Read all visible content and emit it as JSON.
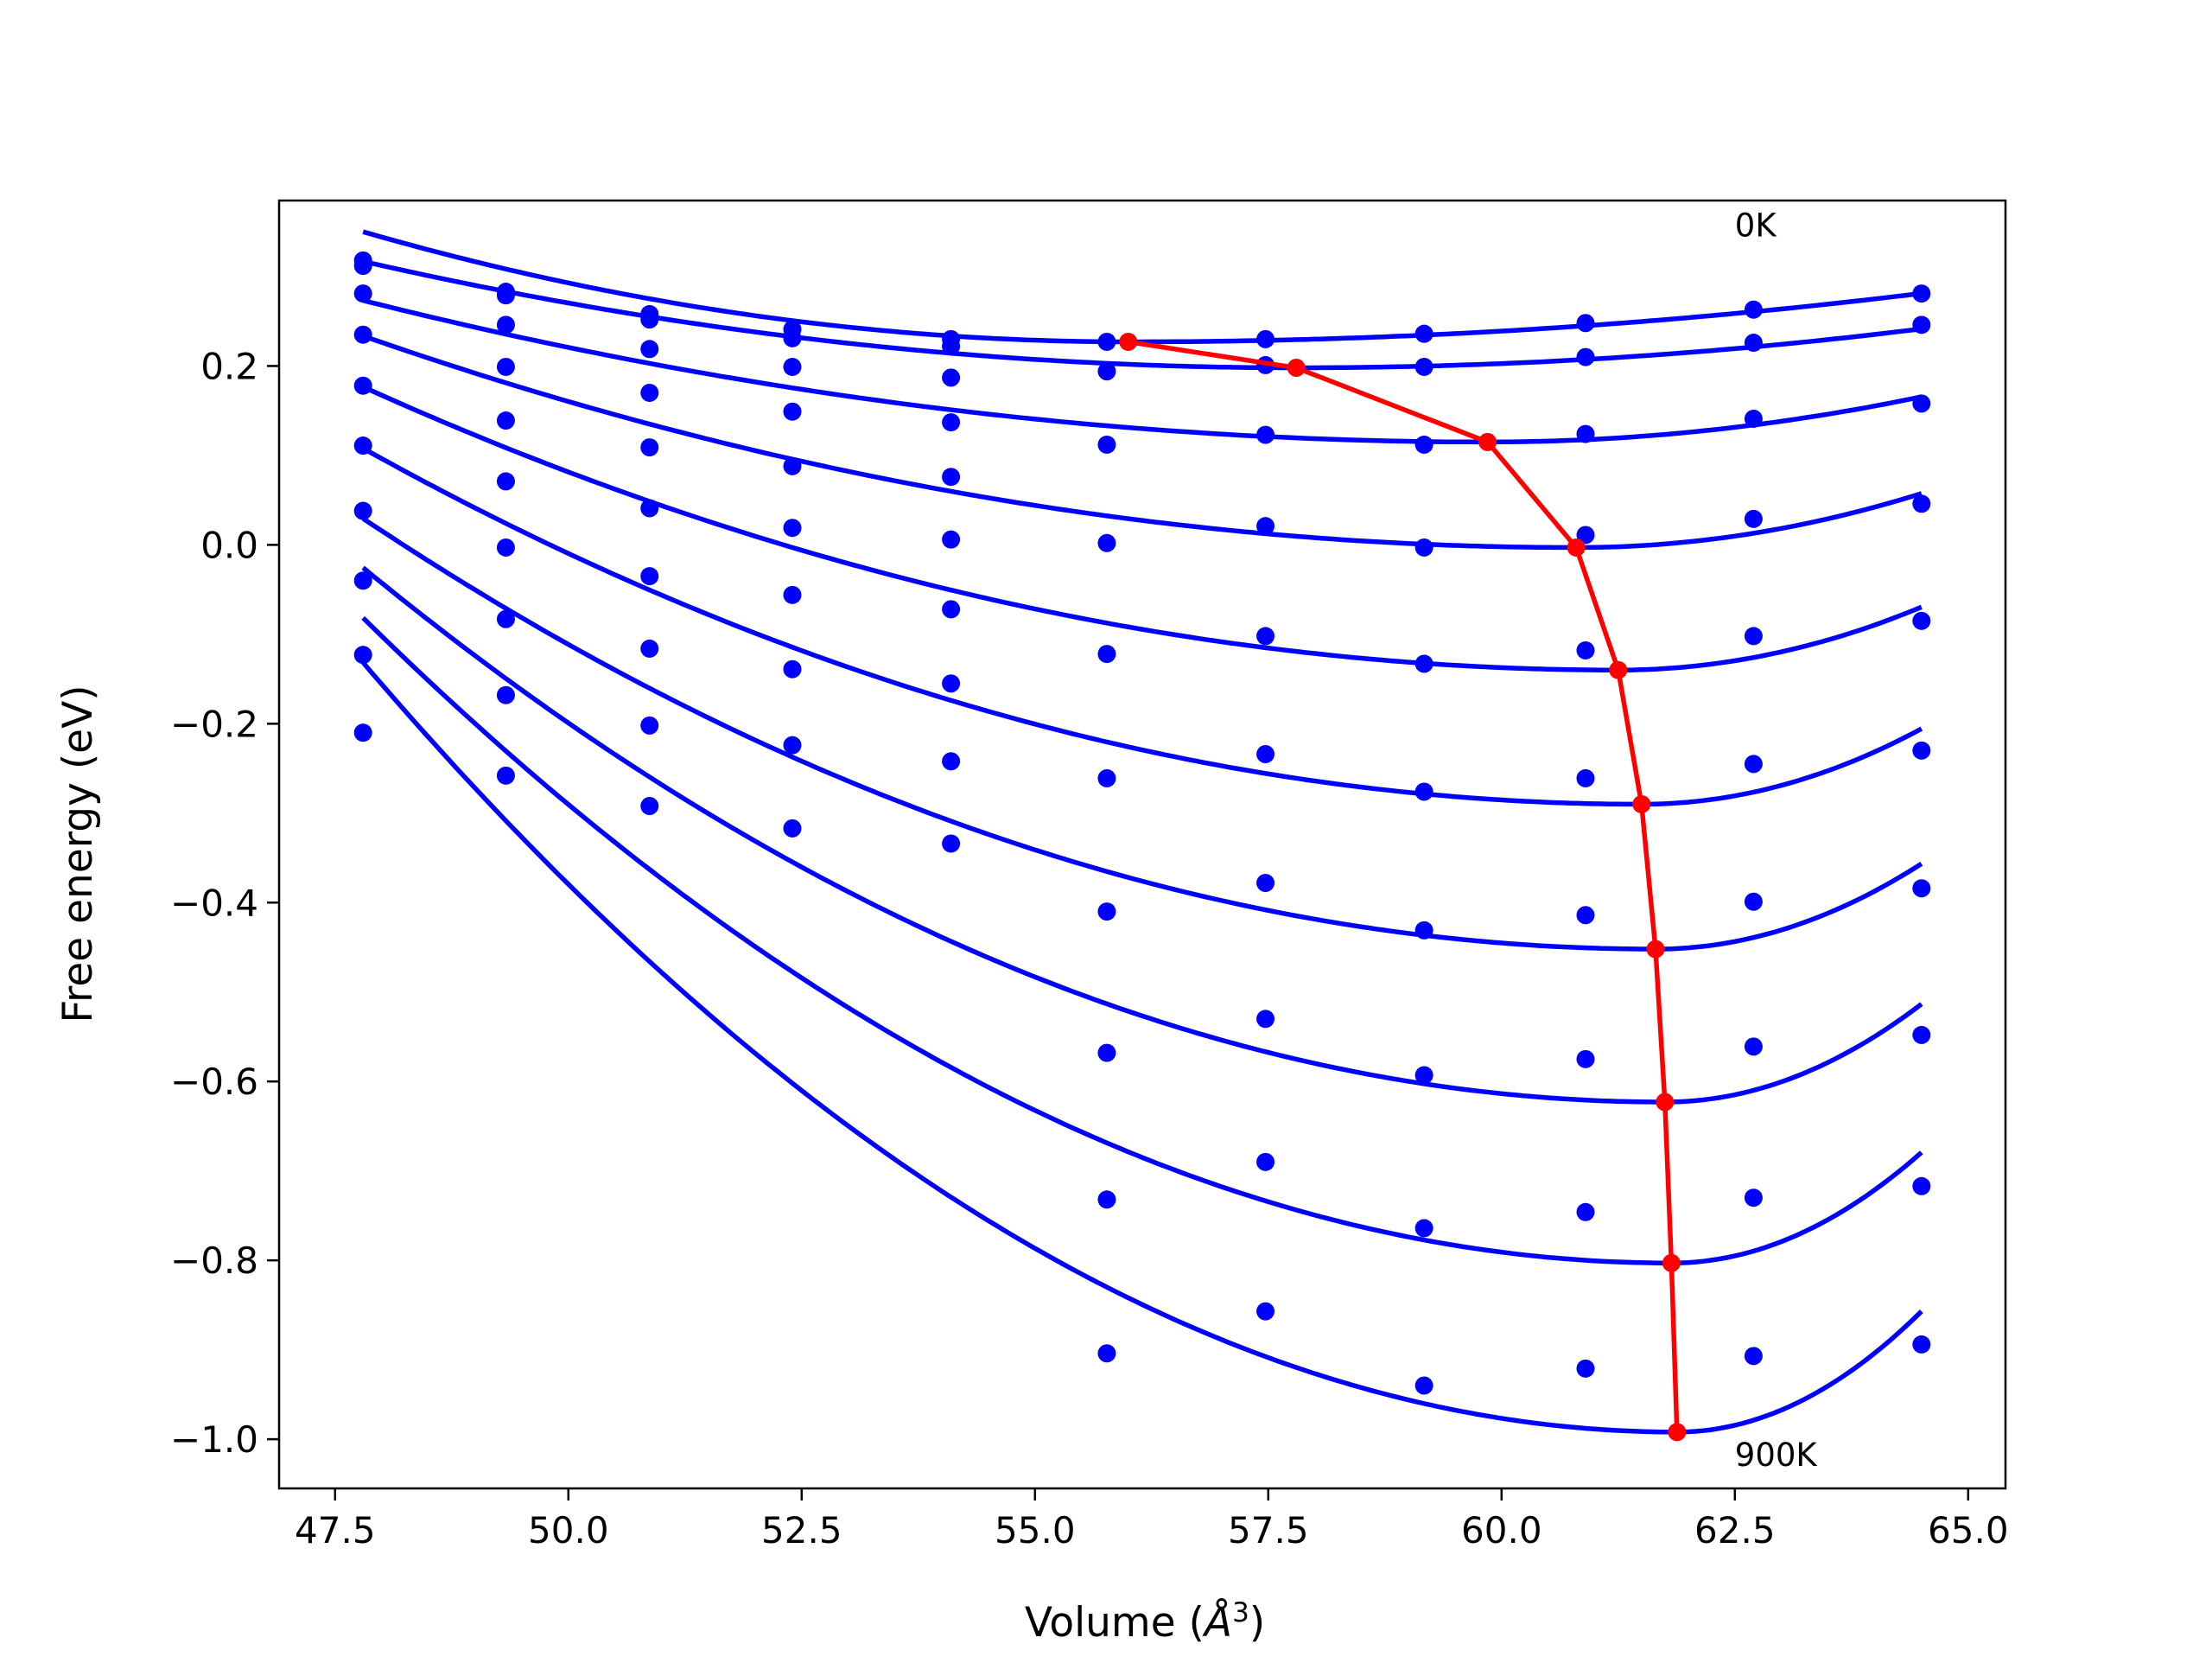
{
  "chart_data": {
    "type": "scatter",
    "title": "",
    "xlabel": "Volume (",
    "xlabel_unit_base": "Å",
    "xlabel_unit_exp": "3",
    "xlabel_close": ")",
    "ylabel": "Free energy (eV)",
    "xlim": [
      46.9,
      65.4
    ],
    "ylim": [
      -1.055,
      0.385
    ],
    "xticks": [
      47.5,
      50.0,
      52.5,
      55.0,
      57.5,
      60.0,
      62.5,
      65.0
    ],
    "xtick_labels": [
      "47.5",
      "50.0",
      "52.5",
      "55.0",
      "57.5",
      "60.0",
      "62.5",
      "65.0"
    ],
    "yticks": [
      0.2,
      0.0,
      -0.2,
      -0.4,
      -0.6,
      -0.8,
      -1.0
    ],
    "ytick_labels": [
      "0.2",
      "0.0",
      "−0.2",
      "−0.4",
      "−0.6",
      "−0.8",
      "−1.0"
    ],
    "grid": false,
    "colors": {
      "points": "#0000ff",
      "fits": "#0000ff",
      "minima": "#ff0000"
    },
    "annotations": [
      {
        "text": "0K",
        "x": 62.5,
        "y": 0.345
      },
      {
        "text": "900K",
        "x": 62.5,
        "y": -1.03
      }
    ],
    "x": [
      47.8,
      49.33,
      50.87,
      52.4,
      54.1,
      55.77,
      57.47,
      59.17,
      60.9,
      62.7,
      64.5
    ],
    "series": [
      {
        "values": [
          0.318,
          0.283,
          0.258,
          0.241,
          0.23,
          0.227,
          0.23,
          0.236,
          0.248,
          0.263,
          0.281
        ],
        "fit": {
          "vmin": 56.0,
          "emin": 0.227,
          "kl": 0.00183,
          "kr": 0.00075
        }
      },
      {
        "values": [
          0.312,
          0.279,
          0.252,
          0.231,
          0.222,
          0.194,
          0.201,
          0.199,
          0.21,
          0.226,
          0.246
        ],
        "fit": {
          "vmin": 57.8,
          "emin": 0.198,
          "kl": 0.00119,
          "kr": 0.00097
        }
      },
      {
        "values": [
          0.281,
          0.246,
          0.219,
          0.199,
          0.187,
          0.112,
          0.123,
          0.112,
          0.124,
          0.141,
          0.158
        ],
        "fit": {
          "vmin": 59.85,
          "emin": 0.115,
          "kl": 0.00109,
          "kr": 0.00234
        }
      },
      {
        "values": [
          0.235,
          0.199,
          0.17,
          0.149,
          0.137,
          0.002,
          0.021,
          -0.003,
          0.011,
          0.029,
          0.046
        ],
        "fit": {
          "vmin": 60.8,
          "emin": -0.003,
          "kl": 0.0014,
          "kr": 0.00442
        }
      },
      {
        "values": [
          0.178,
          0.139,
          0.109,
          0.088,
          0.076,
          -0.122,
          -0.102,
          -0.133,
          -0.118,
          -0.102,
          -0.085
        ],
        "fit": {
          "vmin": 61.25,
          "emin": -0.14,
          "kl": 0.00175,
          "kr": 0.00667
        }
      },
      {
        "values": [
          0.111,
          0.071,
          0.041,
          0.019,
          0.006,
          -0.261,
          -0.234,
          -0.276,
          -0.261,
          -0.245,
          -0.23
        ],
        "fit": {
          "vmin": 61.5,
          "emin": -0.29,
          "kl": 0.00212,
          "kr": 0.00938
        }
      },
      {
        "values": [
          0.038,
          -0.003,
          -0.035,
          -0.056,
          -0.072,
          -0.41,
          -0.378,
          -0.431,
          -0.414,
          -0.399,
          -0.384
        ],
        "fit": {
          "vmin": 61.65,
          "emin": -0.452,
          "kl": 0.00251,
          "kr": 0.01175
        }
      },
      {
        "values": [
          -0.04,
          -0.083,
          -0.116,
          -0.139,
          -0.155,
          -0.568,
          -0.53,
          -0.593,
          -0.575,
          -0.561,
          -0.548
        ],
        "fit": {
          "vmin": 61.75,
          "emin": -0.623,
          "kl": 0.00307,
          "kr": 0.01449
        }
      },
      {
        "values": [
          -0.123,
          -0.168,
          -0.202,
          -0.224,
          -0.242,
          -0.732,
          -0.69,
          -0.764,
          -0.746,
          -0.73,
          -0.717
        ],
        "fit": {
          "vmin": 61.82,
          "emin": -0.803,
          "kl": 0.00367,
          "kr": 0.01722
        }
      },
      {
        "values": [
          -0.21,
          -0.258,
          -0.292,
          -0.317,
          -0.334,
          -0.904,
          -0.857,
          -0.94,
          -0.921,
          -0.907,
          -0.894
        ],
        "fit": {
          "vmin": 61.88,
          "emin": -0.992,
          "kl": 0.00434,
          "kr": 0.01967
        }
      }
    ],
    "minima": {
      "x": [
        56.0,
        57.8,
        59.85,
        60.8,
        61.25,
        61.5,
        61.65,
        61.75,
        61.82,
        61.88
      ],
      "y": [
        0.227,
        0.198,
        0.115,
        -0.003,
        -0.14,
        -0.29,
        -0.452,
        -0.623,
        -0.803,
        -0.992
      ]
    }
  }
}
